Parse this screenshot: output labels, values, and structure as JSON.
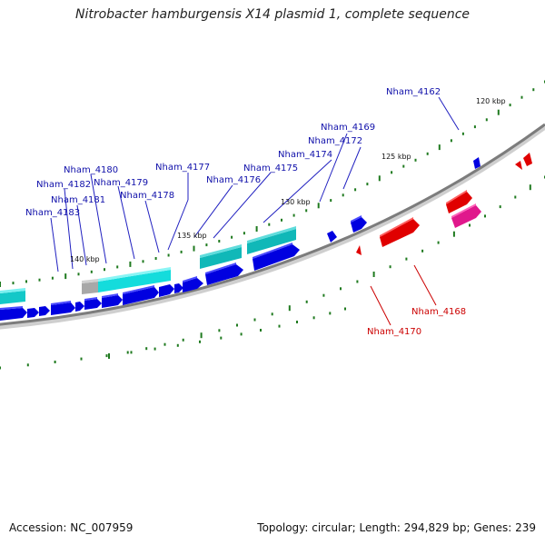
{
  "title": "Nitrobacter hamburgensis X14 plasmid 1, complete sequence",
  "accession_text": "Accession: NC_007959",
  "summary_text": "Topology: circular; Length: 294,829 bp; Genes: 239",
  "colors": {
    "backbone": "#888888",
    "forward_gene": "#00cccc",
    "reverse_gene": "#0000e0",
    "rna_gene": "#e00000",
    "pink_gene": "#e0188c",
    "pseudo_gene": "#aaaaaa",
    "tick": "#1f7a1f",
    "blue_label": "#1010aa",
    "red_label": "#cc0000"
  },
  "scale_labels": [
    "120 kbp",
    "125 kbp",
    "130 kbp",
    "135 kbp",
    "140 kbp"
  ],
  "blue_gene_labels": [
    "Nham_4162",
    "Nham_4169",
    "Nham_4172",
    "Nham_4174",
    "Nham_4175",
    "Nham_4176",
    "Nham_4177",
    "Nham_4178",
    "Nham_4179",
    "Nham_4180",
    "Nham_4181",
    "Nham_4182",
    "Nham_4183"
  ],
  "red_gene_labels": [
    "Nham_4168",
    "Nham_4170"
  ]
}
